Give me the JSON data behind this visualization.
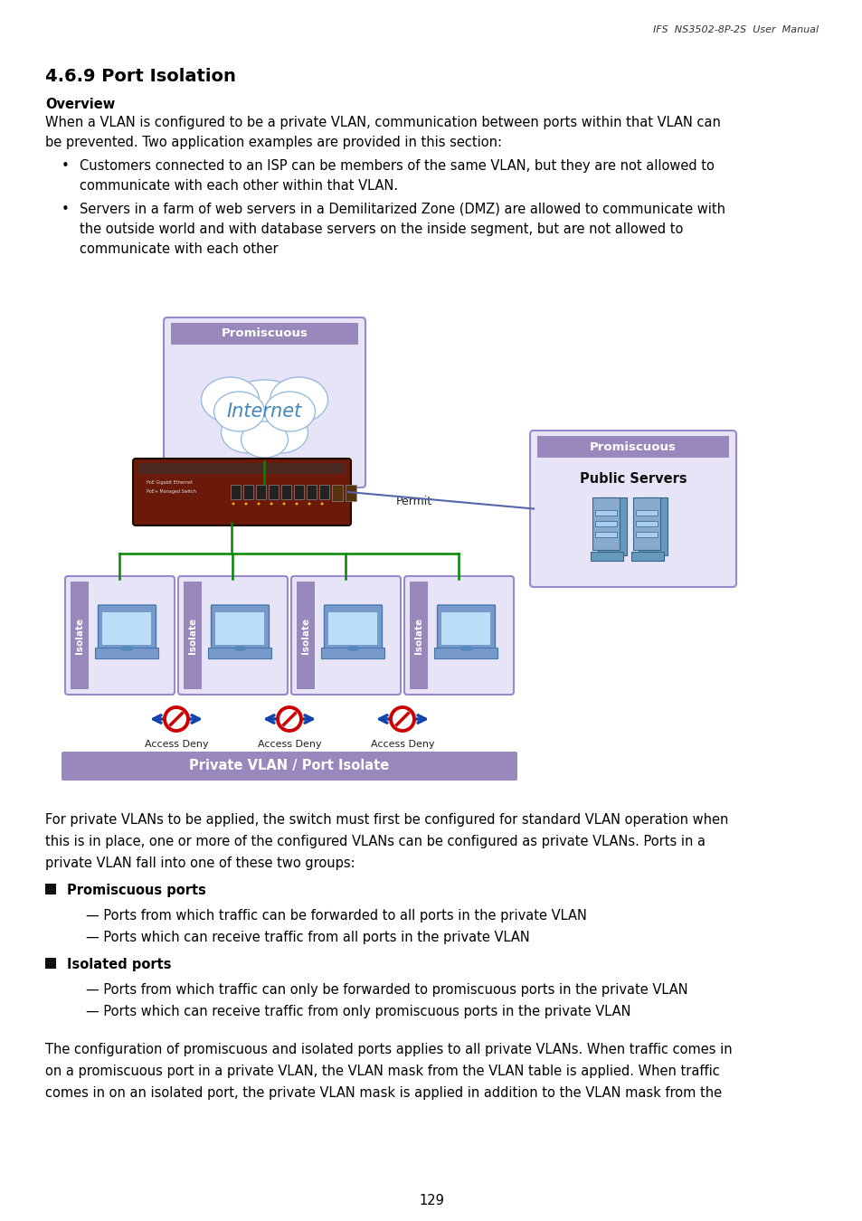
{
  "header_text": "IFS  NS3502-8P-2S  User  Manual",
  "section_title": "4.6.9 Port Isolation",
  "overview_label": "Overview",
  "para1_line1": "When a VLAN is configured to be a private VLAN, communication between ports within that VLAN can",
  "para1_line2": "be prevented. Two application examples are provided in this section:",
  "bullet1_line1": "Customers connected to an ISP can be members of the same VLAN, but they are not allowed to",
  "bullet1_line2": "communicate with each other within that VLAN.",
  "bullet2_line1": "Servers in a farm of web servers in a Demilitarized Zone (DMZ) are allowed to communicate with",
  "bullet2_line2": "the outside world and with database servers on the inside segment, but are not allowed to",
  "bullet2_line3": "communicate with each other",
  "para2_line1": "For private VLANs to be applied, the switch must first be configured for standard VLAN operation when",
  "para2_line2": "this is in place, one or more of the configured VLANs can be configured as private VLANs. Ports in a",
  "para2_line3": "private VLAN fall into one of these two groups:",
  "bullet3_title": "Promiscuous ports",
  "bullet3_sub1": "— Ports from which traffic can be forwarded to all ports in the private VLAN",
  "bullet3_sub2": "— Ports which can receive traffic from all ports in the private VLAN",
  "bullet4_title": "Isolated ports",
  "bullet4_sub1": "— Ports from which traffic can only be forwarded to promiscuous ports in the private VLAN",
  "bullet4_sub2": "— Ports which can receive traffic from only promiscuous ports in the private VLAN",
  "para3_line1": "The configuration of promiscuous and isolated ports applies to all private VLANs. When traffic comes in",
  "para3_line2": "on a promiscuous port in a private VLAN, the VLAN mask from the VLAN table is applied. When traffic",
  "para3_line3": "comes in on an isolated port, the private VLAN mask is applied in addition to the VLAN mask from the",
  "page_num": "129",
  "bg_color": "#ffffff",
  "text_color": "#000000",
  "box_fill_light": "#e8e4f8",
  "box_stroke": "#9988cc",
  "box_fill_dark": "#9988bb",
  "green_line_color": "#008800",
  "arrow_color": "#1144aa",
  "deny_color": "#cc0000",
  "permit_line_color": "#5566aa"
}
